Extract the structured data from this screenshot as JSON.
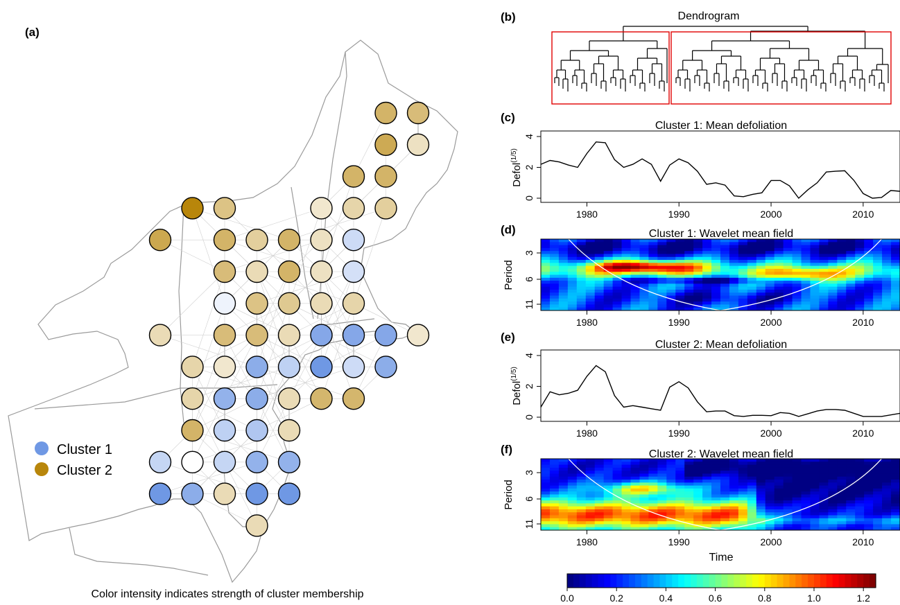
{
  "colors": {
    "cluster1": "#6f98e4",
    "cluster2": "#b8860b",
    "border": "#9a9a9a",
    "network": "#c8c8c8",
    "box": "#e00000"
  },
  "panels": {
    "a": {
      "label": "(a)",
      "caption": "Color intensity indicates strength of cluster membership",
      "legend": [
        {
          "name": "Cluster 1",
          "color": "#6f98e4"
        },
        {
          "name": "Cluster 2",
          "color": "#b8860b"
        }
      ]
    },
    "b": {
      "label": "(b)",
      "title": "Dendrogram"
    },
    "c": {
      "label": "(c)",
      "title": "Cluster 1: Mean defoliation",
      "ylabel": "Defol",
      "ylabel_sup": "(1/5)"
    },
    "d": {
      "label": "(d)",
      "title": "Cluster 1: Wavelet mean field",
      "ylabel": "Period"
    },
    "e": {
      "label": "(e)",
      "title": "Cluster 2: Mean defoliation",
      "ylabel": "Defol",
      "ylabel_sup": "(1/5)"
    },
    "f": {
      "label": "(f)",
      "title": "Cluster 2: Wavelet mean field",
      "ylabel": "Period",
      "xlabel": "Time"
    }
  },
  "chart_data": [
    {
      "type": "scatter",
      "panel": "a",
      "note_cells": "site grid; cluster 1 or 2 with membership strength 0-1",
      "sites": [
        {
          "row": 0,
          "col": 7,
          "cluster": 2,
          "strength": 0.62
        },
        {
          "row": 0,
          "col": 8,
          "cluster": 2,
          "strength": 0.55
        },
        {
          "row": 1,
          "col": 7,
          "cluster": 2,
          "strength": 0.7
        },
        {
          "row": 1,
          "col": 8,
          "cluster": 2,
          "strength": 0.25
        },
        {
          "row": 2,
          "col": 6,
          "cluster": 2,
          "strength": 0.62
        },
        {
          "row": 2,
          "col": 7,
          "cluster": 2,
          "strength": 0.62
        },
        {
          "row": 3,
          "col": 1,
          "cluster": 2,
          "strength": 1.0
        },
        {
          "row": 3,
          "col": 2,
          "cluster": 2,
          "strength": 0.5
        },
        {
          "row": 3,
          "col": 5,
          "cluster": 2,
          "strength": 0.2
        },
        {
          "row": 3,
          "col": 6,
          "cluster": 2,
          "strength": 0.35
        },
        {
          "row": 3,
          "col": 7,
          "cluster": 2,
          "strength": 0.4
        },
        {
          "row": 4,
          "col": 0,
          "cluster": 2,
          "strength": 0.72
        },
        {
          "row": 4,
          "col": 2,
          "cluster": 2,
          "strength": 0.62
        },
        {
          "row": 4,
          "col": 3,
          "cluster": 2,
          "strength": 0.4
        },
        {
          "row": 4,
          "col": 4,
          "cluster": 2,
          "strength": 0.62
        },
        {
          "row": 4,
          "col": 5,
          "cluster": 2,
          "strength": 0.25
        },
        {
          "row": 4,
          "col": 6,
          "cluster": 1,
          "strength": 0.35
        },
        {
          "row": 5,
          "col": 2,
          "cluster": 2,
          "strength": 0.55
        },
        {
          "row": 5,
          "col": 3,
          "cluster": 2,
          "strength": 0.3
        },
        {
          "row": 5,
          "col": 4,
          "cluster": 2,
          "strength": 0.62
        },
        {
          "row": 5,
          "col": 5,
          "cluster": 2,
          "strength": 0.25
        },
        {
          "row": 5,
          "col": 6,
          "cluster": 1,
          "strength": 0.3
        },
        {
          "row": 6,
          "col": 2,
          "cluster": 1,
          "strength": 0.12
        },
        {
          "row": 6,
          "col": 3,
          "cluster": 2,
          "strength": 0.5
        },
        {
          "row": 6,
          "col": 4,
          "cluster": 2,
          "strength": 0.45
        },
        {
          "row": 6,
          "col": 5,
          "cluster": 2,
          "strength": 0.3
        },
        {
          "row": 6,
          "col": 6,
          "cluster": 2,
          "strength": 0.35
        },
        {
          "row": 7,
          "col": 0,
          "cluster": 2,
          "strength": 0.3
        },
        {
          "row": 7,
          "col": 2,
          "cluster": 2,
          "strength": 0.55
        },
        {
          "row": 7,
          "col": 3,
          "cluster": 2,
          "strength": 0.55
        },
        {
          "row": 7,
          "col": 4,
          "cluster": 2,
          "strength": 0.3
        },
        {
          "row": 7,
          "col": 5,
          "cluster": 1,
          "strength": 0.85
        },
        {
          "row": 7,
          "col": 6,
          "cluster": 1,
          "strength": 0.85
        },
        {
          "row": 7,
          "col": 7,
          "cluster": 1,
          "strength": 0.85
        },
        {
          "row": 7,
          "col": 8,
          "cluster": 2,
          "strength": 0.2
        },
        {
          "row": 8,
          "col": 1,
          "cluster": 2,
          "strength": 0.35
        },
        {
          "row": 8,
          "col": 2,
          "cluster": 2,
          "strength": 0.2
        },
        {
          "row": 8,
          "col": 3,
          "cluster": 1,
          "strength": 0.8
        },
        {
          "row": 8,
          "col": 4,
          "cluster": 1,
          "strength": 0.45
        },
        {
          "row": 8,
          "col": 5,
          "cluster": 1,
          "strength": 1.0
        },
        {
          "row": 8,
          "col": 6,
          "cluster": 1,
          "strength": 0.35
        },
        {
          "row": 8,
          "col": 7,
          "cluster": 1,
          "strength": 0.8
        },
        {
          "row": 9,
          "col": 1,
          "cluster": 2,
          "strength": 0.35
        },
        {
          "row": 9,
          "col": 2,
          "cluster": 1,
          "strength": 0.75
        },
        {
          "row": 9,
          "col": 3,
          "cluster": 1,
          "strength": 0.8
        },
        {
          "row": 9,
          "col": 4,
          "cluster": 2,
          "strength": 0.3
        },
        {
          "row": 9,
          "col": 5,
          "cluster": 2,
          "strength": 0.6
        },
        {
          "row": 9,
          "col": 6,
          "cluster": 2,
          "strength": 0.6
        },
        {
          "row": 10,
          "col": 1,
          "cluster": 2,
          "strength": 0.62
        },
        {
          "row": 10,
          "col": 2,
          "cluster": 1,
          "strength": 0.45
        },
        {
          "row": 10,
          "col": 3,
          "cluster": 1,
          "strength": 0.55
        },
        {
          "row": 10,
          "col": 4,
          "cluster": 2,
          "strength": 0.3
        },
        {
          "row": 11,
          "col": 0,
          "cluster": 1,
          "strength": 0.4
        },
        {
          "row": 11,
          "col": 1,
          "cluster": 1,
          "strength": 0.0
        },
        {
          "row": 11,
          "col": 2,
          "cluster": 1,
          "strength": 0.4
        },
        {
          "row": 11,
          "col": 3,
          "cluster": 1,
          "strength": 0.75
        },
        {
          "row": 11,
          "col": 4,
          "cluster": 1,
          "strength": 0.75
        },
        {
          "row": 12,
          "col": 0,
          "cluster": 1,
          "strength": 1.0
        },
        {
          "row": 12,
          "col": 1,
          "cluster": 1,
          "strength": 0.8
        },
        {
          "row": 12,
          "col": 2,
          "cluster": 2,
          "strength": 0.3
        },
        {
          "row": 12,
          "col": 3,
          "cluster": 1,
          "strength": 1.0
        },
        {
          "row": 12,
          "col": 4,
          "cluster": 1,
          "strength": 1.0
        },
        {
          "row": 13,
          "col": 3,
          "cluster": 2,
          "strength": 0.3
        }
      ]
    },
    {
      "type": "line",
      "panel": "c",
      "x": [
        1975,
        1976,
        1977,
        1978,
        1979,
        1980,
        1981,
        1982,
        1983,
        1984,
        1985,
        1986,
        1987,
        1988,
        1989,
        1990,
        1991,
        1992,
        1993,
        1994,
        1995,
        1996,
        1997,
        1998,
        1999,
        2000,
        2001,
        2002,
        2003,
        2004,
        2005,
        2006,
        2007,
        2008,
        2009,
        2010,
        2011,
        2012,
        2013,
        2014
      ],
      "y": [
        2.2,
        2.45,
        2.35,
        2.15,
        2.0,
        2.9,
        3.65,
        3.6,
        2.5,
        2.0,
        2.2,
        2.55,
        2.2,
        1.1,
        2.15,
        2.55,
        2.3,
        1.75,
        0.9,
        1.0,
        0.85,
        0.15,
        0.1,
        0.25,
        0.35,
        1.15,
        1.15,
        0.8,
        0.0,
        0.55,
        1.0,
        1.7,
        1.75,
        1.78,
        1.15,
        0.3,
        0.0,
        0.05,
        0.5,
        0.45
      ],
      "xticks": [
        1980,
        1990,
        2000,
        2010
      ],
      "yticks": [
        0,
        2,
        4
      ],
      "xlim": [
        1975,
        2014
      ],
      "ylim": [
        0,
        4
      ]
    },
    {
      "type": "heatmap",
      "panel": "d",
      "xticks": [
        1980,
        1990,
        2000,
        2010
      ],
      "yticks": [
        3,
        6,
        11
      ],
      "xlim": [
        1975,
        2014
      ],
      "colorscale_range": [
        0,
        1.25
      ]
    },
    {
      "type": "line",
      "panel": "e",
      "x": [
        1975,
        1976,
        1977,
        1978,
        1979,
        1980,
        1981,
        1982,
        1983,
        1984,
        1985,
        1986,
        1987,
        1988,
        1989,
        1990,
        1991,
        1992,
        1993,
        1994,
        1995,
        1996,
        1997,
        1998,
        1999,
        2000,
        2001,
        2002,
        2003,
        2004,
        2005,
        2006,
        2007,
        2008,
        2009,
        2010,
        2011,
        2012,
        2013,
        2014
      ],
      "y": [
        0.65,
        1.65,
        1.45,
        1.55,
        1.75,
        2.65,
        3.35,
        2.95,
        1.4,
        0.65,
        0.75,
        0.65,
        0.55,
        0.45,
        1.95,
        2.3,
        1.9,
        1.0,
        0.35,
        0.4,
        0.4,
        0.1,
        0.05,
        0.12,
        0.12,
        0.1,
        0.3,
        0.25,
        0.05,
        0.22,
        0.4,
        0.5,
        0.5,
        0.45,
        0.25,
        0.05,
        0.05,
        0.05,
        0.15,
        0.25
      ],
      "xticks": [
        1980,
        1990,
        2000,
        2010
      ],
      "yticks": [
        0,
        2,
        4
      ],
      "xlim": [
        1975,
        2014
      ],
      "ylim": [
        0,
        4
      ]
    },
    {
      "type": "heatmap",
      "panel": "f",
      "xticks": [
        1980,
        1990,
        2000,
        2010
      ],
      "yticks": [
        3,
        6,
        11
      ],
      "xlim": [
        1975,
        2014
      ],
      "colorscale_range": [
        0,
        1.25
      ]
    },
    {
      "type": "heatmap",
      "panel": "colorbar",
      "ticks": [
        0.0,
        0.2,
        0.4,
        0.6,
        0.8,
        1.0,
        1.2
      ],
      "tick_labels": [
        "0.0",
        "0.2",
        "0.4",
        "0.6",
        "0.8",
        "1.0",
        "1.2"
      ],
      "range": [
        0,
        1.25
      ]
    }
  ]
}
